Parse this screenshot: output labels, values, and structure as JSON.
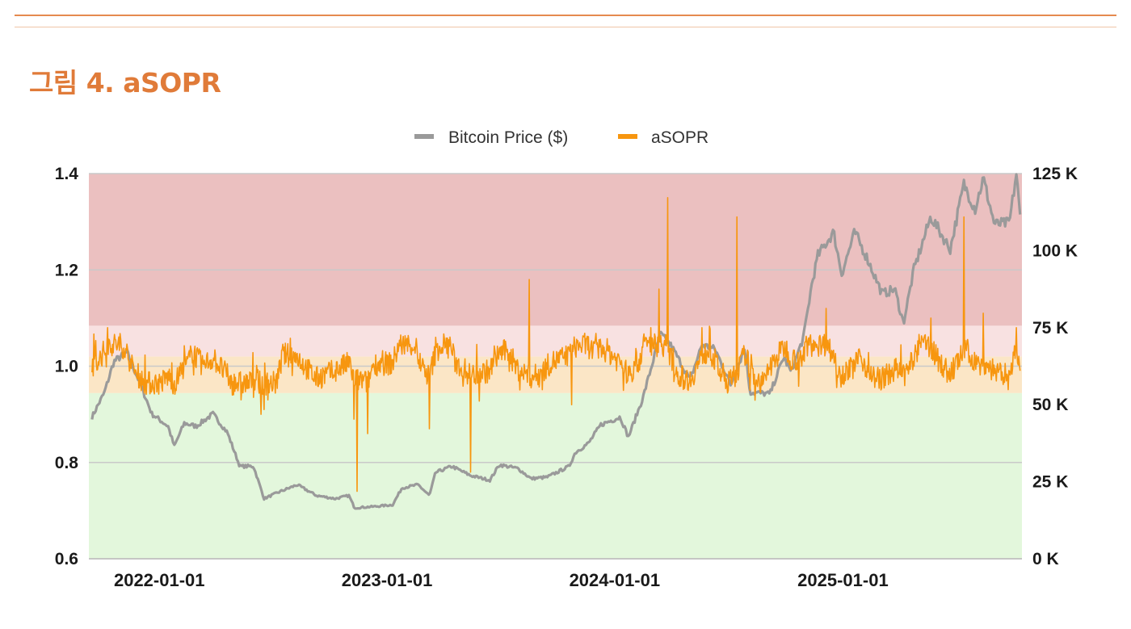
{
  "header": {
    "figure_title": "그림 4. aSOPR"
  },
  "colors": {
    "price_line": "#9a9a9a",
    "asopr_line": "#f7960f",
    "zone_red": "#ebc0c0",
    "zone_pink": "#f8e1e1",
    "zone_yellow": "#fbe6c6",
    "zone_green": "#e3f7dc",
    "title_accent": "#e07b39"
  },
  "chart_data": {
    "type": "line",
    "title": "",
    "legend_position": "top-center",
    "grid": true,
    "series": [
      {
        "name": "Bitcoin Price ($)",
        "axis": "right",
        "points": [
          [
            "2021-09-15",
            46000
          ],
          [
            "2021-10-05",
            54000
          ],
          [
            "2021-10-20",
            64000
          ],
          [
            "2021-11-10",
            67000
          ],
          [
            "2021-12-01",
            57000
          ],
          [
            "2021-12-20",
            47000
          ],
          [
            "2022-01-15",
            43000
          ],
          [
            "2022-01-25",
            36500
          ],
          [
            "2022-02-10",
            44000
          ],
          [
            "2022-03-01",
            43000
          ],
          [
            "2022-03-28",
            47000
          ],
          [
            "2022-04-20",
            41000
          ],
          [
            "2022-05-10",
            30000
          ],
          [
            "2022-06-01",
            30000
          ],
          [
            "2022-06-18",
            19500
          ],
          [
            "2022-07-10",
            21500
          ],
          [
            "2022-08-10",
            24000
          ],
          [
            "2022-09-10",
            20500
          ],
          [
            "2022-10-10",
            19500
          ],
          [
            "2022-11-01",
            20500
          ],
          [
            "2022-11-10",
            16500
          ],
          [
            "2022-12-15",
            17000
          ],
          [
            "2023-01-10",
            17500
          ],
          [
            "2023-01-25",
            23000
          ],
          [
            "2023-02-20",
            24000
          ],
          [
            "2023-03-10",
            20500
          ],
          [
            "2023-03-20",
            28000
          ],
          [
            "2023-04-15",
            30000
          ],
          [
            "2023-05-15",
            27000
          ],
          [
            "2023-06-15",
            25500
          ],
          [
            "2023-06-30",
            30500
          ],
          [
            "2023-07-30",
            29300
          ],
          [
            "2023-08-20",
            26000
          ],
          [
            "2023-09-15",
            26500
          ],
          [
            "2023-10-20",
            30000
          ],
          [
            "2023-10-30",
            34500
          ],
          [
            "2023-11-20",
            37500
          ],
          [
            "2023-12-10",
            43500
          ],
          [
            "2024-01-10",
            46000
          ],
          [
            "2024-01-23",
            39500
          ],
          [
            "2024-02-15",
            52000
          ],
          [
            "2024-03-05",
            66000
          ],
          [
            "2024-03-14",
            73000
          ],
          [
            "2024-04-01",
            69000
          ],
          [
            "2024-05-01",
            58000
          ],
          [
            "2024-05-20",
            69500
          ],
          [
            "2024-06-10",
            68000
          ],
          [
            "2024-07-05",
            56500
          ],
          [
            "2024-07-28",
            68500
          ],
          [
            "2024-08-05",
            54000
          ],
          [
            "2024-09-06",
            53500
          ],
          [
            "2024-09-28",
            65500
          ],
          [
            "2024-10-10",
            60500
          ],
          [
            "2024-10-30",
            72000
          ],
          [
            "2024-11-12",
            89000
          ],
          [
            "2024-11-22",
            98500
          ],
          [
            "2024-12-17",
            106000
          ],
          [
            "2024-12-30",
            92500
          ],
          [
            "2025-01-20",
            106000
          ],
          [
            "2025-02-10",
            97000
          ],
          [
            "2025-03-05",
            86000
          ],
          [
            "2025-03-25",
            87500
          ],
          [
            "2025-04-08",
            76500
          ],
          [
            "2025-04-25",
            94000
          ],
          [
            "2025-05-22",
            111000
          ],
          [
            "2025-06-22",
            100500
          ],
          [
            "2025-07-14",
            121500
          ],
          [
            "2025-08-01",
            113500
          ],
          [
            "2025-08-14",
            123500
          ],
          [
            "2025-09-01",
            108500
          ],
          [
            "2025-09-25",
            109000
          ],
          [
            "2025-10-06",
            125000
          ],
          [
            "2025-10-12",
            111000
          ]
        ]
      },
      {
        "name": "aSOPR",
        "axis": "left",
        "baseline": 1.0,
        "spikes": [
          [
            "2021-10-10",
            1.08
          ],
          [
            "2022-01-22",
            0.95
          ],
          [
            "2022-05-12",
            0.93
          ],
          [
            "2022-06-13",
            0.9
          ],
          [
            "2022-06-18",
            0.91
          ],
          [
            "2022-11-09",
            0.89
          ],
          [
            "2022-11-14",
            0.74
          ],
          [
            "2022-12-01",
            0.86
          ],
          [
            "2023-01-28",
            1.04
          ],
          [
            "2023-03-10",
            0.87
          ],
          [
            "2023-03-20",
            1.06
          ],
          [
            "2023-05-15",
            0.78
          ],
          [
            "2023-08-17",
            1.18
          ],
          [
            "2023-10-24",
            0.92
          ],
          [
            "2024-02-28",
            1.08
          ],
          [
            "2024-03-12",
            1.16
          ],
          [
            "2024-03-26",
            1.35
          ],
          [
            "2024-05-20",
            1.08
          ],
          [
            "2024-07-15",
            1.31
          ],
          [
            "2024-08-05",
            0.95
          ],
          [
            "2024-12-05",
            1.12
          ],
          [
            "2025-03-10",
            0.96
          ],
          [
            "2025-05-22",
            1.1
          ],
          [
            "2025-07-14",
            1.31
          ],
          [
            "2025-08-14",
            1.11
          ],
          [
            "2025-10-06",
            1.08
          ]
        ]
      }
    ],
    "left_axis": {
      "ylim": [
        0.6,
        1.4
      ],
      "ticks": [
        "1.4",
        "1.2",
        "1.0",
        "0.8",
        "0.6"
      ]
    },
    "right_axis": {
      "ylim": [
        0,
        125000
      ],
      "ticks": [
        "125 K",
        "100 K",
        "75 K",
        "50 K",
        "25 K",
        "0 K"
      ]
    },
    "x_axis": {
      "range": [
        "2021-09-10",
        "2025-10-15"
      ],
      "ticks": [
        "2022-01-01",
        "2023-01-01",
        "2024-01-01",
        "2025-01-01"
      ]
    },
    "zones": [
      {
        "name": "red",
        "from": 1.084,
        "to": 1.4
      },
      {
        "name": "pink",
        "from": 1.02,
        "to": 1.084
      },
      {
        "name": "yellow",
        "from": 0.944,
        "to": 1.02
      },
      {
        "name": "green",
        "from": 0.6,
        "to": 0.944
      }
    ]
  }
}
